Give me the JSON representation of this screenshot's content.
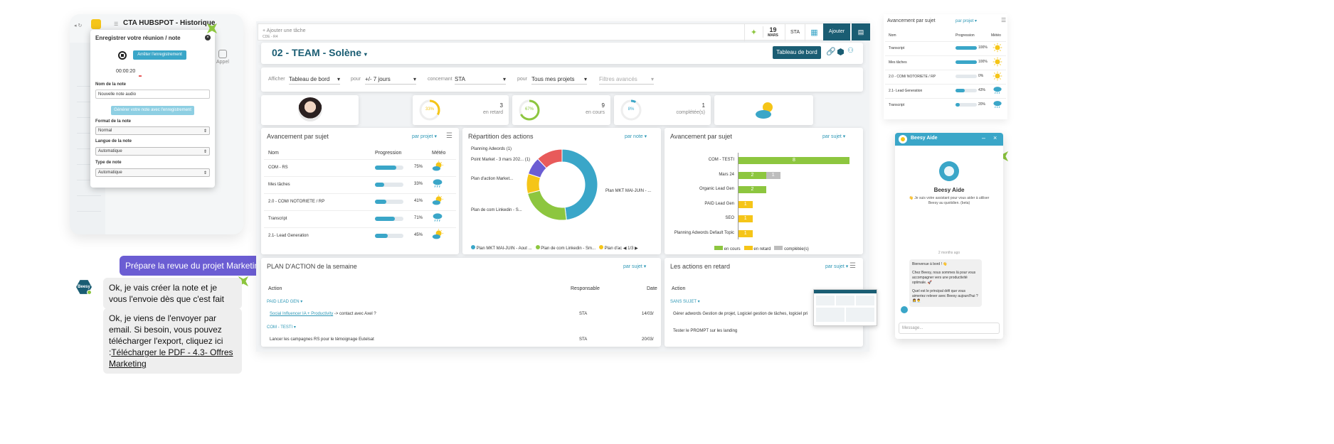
{
  "colors": {
    "teal": "#2e98b6",
    "dark_teal": "#1a5d73",
    "green": "#8dc63f",
    "yellow": "#f5c518",
    "purple": "#6b5dd3",
    "gray": "#bdbdbd",
    "red": "#e85a5a"
  },
  "left_app": {
    "title": "CTA HUBSPOT - Historique",
    "call_label": "Appel",
    "rec_modal": {
      "title": "Enregistrer votre réunion / note",
      "stop_label": "Arrêter l'enregistrement",
      "timer": "00:00:20",
      "name_label": "Nom de la note",
      "name_value": "Nouvelle note audio",
      "generate_label": "Générer votre note avec l'enregistrement",
      "format_label": "Format de la note",
      "format_value": "Normal",
      "lang_label": "Langue de la note",
      "lang_value": "Automatique",
      "type_label": "Type de note",
      "type_value": "Automatique"
    }
  },
  "chat_left": {
    "user_msg": "Prépare la revue du projet Marketing",
    "bot_name": "Beesy",
    "bot_msg1": "Ok, je vais créer la note et je vous l'envoie dès que c'est fait",
    "bot_msg2": "Ok, je viens de l'envoyer par email. Si besoin, vous pouvez télécharger l'export, cliquez ici :",
    "bot_link": "Télécharger le PDF - 4.3- Offres Marketing"
  },
  "topbar": {
    "task_placeholder": "+ Ajouter une tâche",
    "task_sub": "CDE - R4",
    "date_day": "19",
    "date_month": "MARS",
    "user": "STA",
    "add_label": "Ajouter"
  },
  "header": {
    "title": "02 - TEAM - Solène",
    "dashboard_btn": "Tableau de bord"
  },
  "filters": {
    "show_label": "Afficher",
    "show_value": "Tableau de bord",
    "for1_label": "pour",
    "for1_value": "+/- 7 jours",
    "concern_label": "concernant",
    "concern_value": "STA",
    "for2_label": "pour",
    "for2_value": "Tous mes projets",
    "adv_filters": "Filtres avancés"
  },
  "stats": [
    {
      "pct": "33%",
      "count": "3",
      "label": "en retard",
      "pct_val": 33,
      "color": "#f5c518"
    },
    {
      "pct": "67%",
      "count": "9",
      "label": "en cours",
      "pct_val": 67,
      "color": "#8dc63f"
    },
    {
      "pct": "8%",
      "count": "1",
      "label": "complétée(s)",
      "pct_val": 8,
      "color": "#3aa6c8"
    }
  ],
  "subject_progress": {
    "title": "Avancement par sujet",
    "filter": "par projet",
    "col_name": "Nom",
    "col_prog": "Progression",
    "col_weather": "Météo",
    "rows": [
      {
        "name": "COM - RS",
        "pct": "75%",
        "v": 75,
        "w": "sun-cloud"
      },
      {
        "name": "Mes tâches",
        "pct": "33%",
        "v": 33,
        "w": "rain"
      },
      {
        "name": "2.0 - COM/ NOTORIETE / RP",
        "pct": "41%",
        "v": 41,
        "w": "sun-cloud"
      },
      {
        "name": "Transcript",
        "pct": "71%",
        "v": 71,
        "w": "rain"
      },
      {
        "name": "2.1- Lead Generation",
        "pct": "45%",
        "v": 45,
        "w": "sun-cloud"
      }
    ]
  },
  "actions_split": {
    "title": "Répartition des actions",
    "filter": "par note",
    "labels": [
      "Planning Adwords (1)",
      "Point Market - 3 mars 202... (1)",
      "Plan d'action Market...",
      "Plan de com Linkedin - S...",
      "Plan MKT MAI-JUIN - ..."
    ],
    "legend": [
      "Plan MKT MAI-JUIN - Aout ...",
      "Plan de com Linkedin - Sm...",
      "Plan d'ac"
    ],
    "pager": "1/3"
  },
  "chart_data": {
    "type": "pie",
    "title": "Répartition des actions",
    "series": [
      {
        "name": "",
        "values": [
          {
            "label": "Plan MKT MAI-JUIN - ...",
            "value": 48,
            "color": "#3aa6c8"
          },
          {
            "label": "Plan de com Linkedin - S...",
            "value": 23,
            "color": "#8dc63f"
          },
          {
            "label": "Plan d'action Market...",
            "value": 9,
            "color": "#f5c518"
          },
          {
            "label": "Point Market - 3 mars 202... (1)",
            "value": 8,
            "color": "#6b5dd3"
          },
          {
            "label": "Planning Adwords (1)",
            "value": 12,
            "color": "#e85a5a"
          }
        ]
      }
    ]
  },
  "subject_bars": {
    "title": "Avancement par sujet",
    "filter": "par sujet",
    "rows": [
      {
        "name": "COM - TESTI",
        "en_cours": 8,
        "en_retard": 0,
        "completee": 0
      },
      {
        "name": "Mars 24",
        "en_cours": 2,
        "en_retard": 0,
        "completee": 1
      },
      {
        "name": "Organic Lead Gen",
        "en_cours": 2,
        "en_retard": 0,
        "completee": 0
      },
      {
        "name": "PAID Lead Gen",
        "en_cours": 0,
        "en_retard": 1,
        "completee": 0
      },
      {
        "name": "SEO",
        "en_cours": 0,
        "en_retard": 1,
        "completee": 0
      },
      {
        "name": "Planning Adwords Default Topic",
        "en_cours": 0,
        "en_retard": 1,
        "completee": 0
      }
    ],
    "legend": [
      "en cours",
      "en retard",
      "complétée(s)"
    ]
  },
  "action_plan": {
    "title": "PLAN D'ACTION de la semaine",
    "filter": "par sujet",
    "col_action": "Action",
    "col_resp": "Responsable",
    "col_date": "Date",
    "group1": "PAID LEAD GEN",
    "row1_link": "Social Influencer IA + Productivity",
    "row1_rest": " -> contact avec Axel ?",
    "row1_resp": "STA",
    "row1_date": "14/03/",
    "group2": "COM - TESTI",
    "row2": "Lancer les campagnes RS pour le témoignage Eutelsat",
    "row2_resp": "STA",
    "row2_date": "20/03/"
  },
  "late_actions": {
    "title": "Les actions en retard",
    "filter": "par sujet",
    "col_action": "Action",
    "group": "SANS SUJET",
    "row1": "Gérer adwords Gestion de projet, Logiciel gestion de tâches, logiciel pri",
    "row2": "Tester le PROMPT sur les landing"
  },
  "right_widget": {
    "title": "Avancement par sujet",
    "filter": "par projet",
    "col_name": "Nom",
    "col_prog": "Progression",
    "col_weather": "Météo",
    "rows": [
      {
        "name": "Transcript",
        "pct": "100%",
        "v": 100,
        "w": "sun"
      },
      {
        "name": "Mes tâches",
        "pct": "100%",
        "v": 100,
        "w": "sun"
      },
      {
        "name": "2.0 - COM/ NOTORIETE / RP",
        "pct": "0%",
        "v": 0,
        "w": "sun"
      },
      {
        "name": "2.1- Lead Generation",
        "pct": "43%",
        "v": 43,
        "w": "rain"
      },
      {
        "name": "Transcript",
        "pct": "20%",
        "v": 20,
        "w": "rain"
      }
    ]
  },
  "aide": {
    "header": "Beesy Aide",
    "title": "Beesy Aide",
    "subtitle": "👋 Je suis votre assistant pour vous aider à utiliser Beesy au quotidien. (beta)",
    "time": "2 months ago",
    "msg1": "Bienvenue à bord ! 👋",
    "msg2": "Chez Beesy, nous sommes là pour vous accompagner vers une productivité optimale. 🚀",
    "msg3": "Quel est le principal défi que vous aimeriez relever avec Beesy aujourd'hui ? 👩‍💼👨‍💼",
    "input_placeholder": "Message..."
  }
}
